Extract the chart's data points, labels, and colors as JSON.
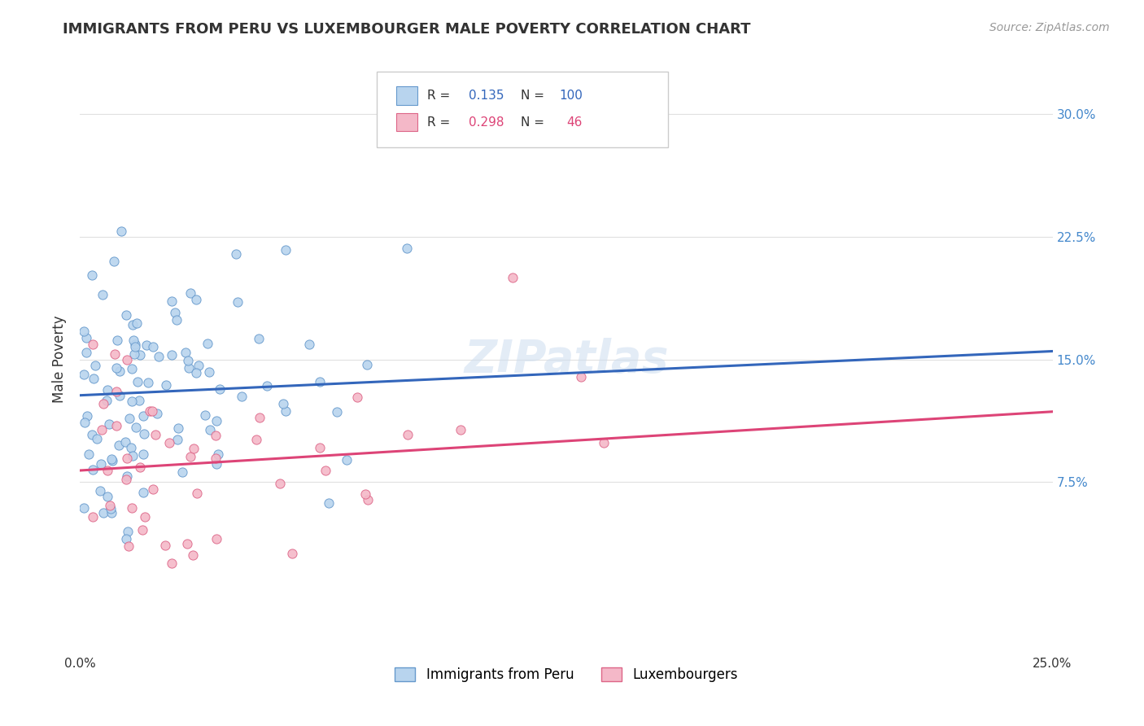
{
  "title": "IMMIGRANTS FROM PERU VS LUXEMBOURGER MALE POVERTY CORRELATION CHART",
  "source": "Source: ZipAtlas.com",
  "ylabel": "Male Poverty",
  "y_ticks": [
    0.075,
    0.15,
    0.225,
    0.3
  ],
  "y_tick_labels": [
    "7.5%",
    "15.0%",
    "22.5%",
    "30.0%"
  ],
  "xlim": [
    0.0,
    0.25
  ],
  "ylim": [
    -0.03,
    0.33
  ],
  "blue_R": 0.135,
  "blue_N": 100,
  "pink_R": 0.298,
  "pink_N": 46,
  "blue_color": "#b8d4ee",
  "pink_color": "#f4b8c8",
  "blue_edge_color": "#6699cc",
  "pink_edge_color": "#dd6688",
  "blue_line_color": "#3366bb",
  "pink_line_color": "#dd4477",
  "legend_blue_label": "Immigrants from Peru",
  "legend_pink_label": "Luxembourgers",
  "blue_line_start_y": 0.128,
  "blue_line_end_y": 0.155,
  "pink_line_start_y": 0.082,
  "pink_line_end_y": 0.118,
  "grid_color": "#e0e0e0",
  "background_color": "#ffffff",
  "watermark": "ZIPatlas",
  "tick_color": "#4488cc",
  "text_color": "#333333",
  "title_fontsize": 13,
  "source_fontsize": 10,
  "tick_fontsize": 11
}
